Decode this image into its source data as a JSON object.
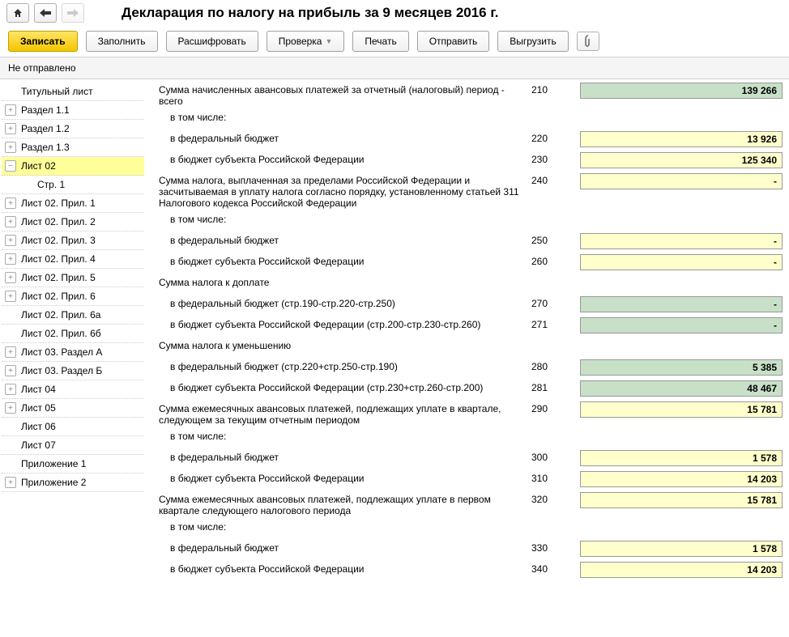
{
  "title": "Декларация по налогу на прибыль за 9 месяцев 2016 г.",
  "toolbar": {
    "save": "Записать",
    "fill": "Заполнить",
    "decrypt": "Расшифровать",
    "check": "Проверка",
    "print": "Печать",
    "send": "Отправить",
    "export": "Выгрузить"
  },
  "status": "Не отправлено",
  "nav": [
    {
      "label": "Титульный лист",
      "expand": false,
      "indent": 1
    },
    {
      "label": "Раздел 1.1",
      "expand": true,
      "indent": 0
    },
    {
      "label": "Раздел 1.2",
      "expand": true,
      "indent": 0
    },
    {
      "label": "Раздел 1.3",
      "expand": true,
      "indent": 0
    },
    {
      "label": "Лист 02",
      "expand": true,
      "expanded": true,
      "indent": 0,
      "active": true
    },
    {
      "label": "Стр. 1",
      "expand": false,
      "indent": 2
    },
    {
      "label": "Лист 02. Прил. 1",
      "expand": true,
      "indent": 0
    },
    {
      "label": "Лист 02. Прил. 2",
      "expand": true,
      "indent": 0
    },
    {
      "label": "Лист 02. Прил. 3",
      "expand": true,
      "indent": 0
    },
    {
      "label": "Лист 02. Прил. 4",
      "expand": true,
      "indent": 0
    },
    {
      "label": "Лист 02. Прил. 5",
      "expand": true,
      "indent": 0
    },
    {
      "label": "Лист 02. Прил. 6",
      "expand": true,
      "indent": 0
    },
    {
      "label": "Лист 02. Прил. 6а",
      "expand": false,
      "indent": 1
    },
    {
      "label": "Лист 02. Прил. 6б",
      "expand": false,
      "indent": 1
    },
    {
      "label": "Лист 03. Раздел А",
      "expand": true,
      "indent": 0
    },
    {
      "label": "Лист 03. Раздел Б",
      "expand": true,
      "indent": 0
    },
    {
      "label": "Лист 04",
      "expand": true,
      "indent": 0
    },
    {
      "label": "Лист 05",
      "expand": true,
      "indent": 0
    },
    {
      "label": "Лист 06",
      "expand": false,
      "indent": 1
    },
    {
      "label": "Лист 07",
      "expand": false,
      "indent": 1
    },
    {
      "label": "Приложение 1",
      "expand": false,
      "indent": 1
    },
    {
      "label": "Приложение 2",
      "expand": true,
      "indent": 0
    }
  ],
  "rows": [
    {
      "label": "Сумма начисленных авансовых платежей за отчетный (налоговый) период - всего",
      "code": "210",
      "value": "139 266",
      "color": "green",
      "indent": 0
    },
    {
      "label": "в том числе:",
      "code": "",
      "value": null,
      "indent": 1
    },
    {
      "label": "в федеральный бюджет",
      "code": "220",
      "value": "13 926",
      "color": "yellow",
      "indent": 1
    },
    {
      "label": "в бюджет субъекта Российской Федерации",
      "code": "230",
      "value": "125 340",
      "color": "yellow",
      "indent": 1
    },
    {
      "label": "Сумма налога, выплаченная за пределами Российской Федерации и засчитываемая в уплату налога согласно порядку, установленному статьей 311 Налогового кодекса Российской Федерации",
      "code": "240",
      "value": "-",
      "color": "yellow",
      "indent": 0
    },
    {
      "label": "в том числе:",
      "code": "",
      "value": null,
      "indent": 1
    },
    {
      "label": "в федеральный бюджет",
      "code": "250",
      "value": "-",
      "color": "yellow",
      "indent": 1
    },
    {
      "label": "в бюджет субъекта Российской Федерации",
      "code": "260",
      "value": "-",
      "color": "yellow",
      "indent": 1
    },
    {
      "label": "Сумма налога к доплате",
      "code": "",
      "value": null,
      "indent": 0
    },
    {
      "label": "в федеральный бюджет (стр.190-стр.220-стр.250)",
      "code": "270",
      "value": "-",
      "color": "green",
      "indent": 1
    },
    {
      "label": "в бюджет субъекта Российской Федерации (стр.200-стр.230-стр.260)",
      "code": "271",
      "value": "-",
      "color": "green",
      "indent": 1
    },
    {
      "label": "Сумма налога к уменьшению",
      "code": "",
      "value": null,
      "indent": 0
    },
    {
      "label": "в федеральный бюджет (стр.220+стр.250-стр.190)",
      "code": "280",
      "value": "5 385",
      "color": "green",
      "indent": 1
    },
    {
      "label": "в бюджет субъекта Российской Федерации (стр.230+стр.260-стр.200)",
      "code": "281",
      "value": "48 467",
      "color": "green",
      "indent": 1
    },
    {
      "label": "Сумма ежемесячных авансовых платежей, подлежащих уплате в квартале, следующем за текущим отчетным периодом",
      "code": "290",
      "value": "15 781",
      "color": "yellow",
      "indent": 0
    },
    {
      "label": "в том числе:",
      "code": "",
      "value": null,
      "indent": 1
    },
    {
      "label": "в федеральный бюджет",
      "code": "300",
      "value": "1 578",
      "color": "yellow",
      "indent": 1
    },
    {
      "label": "в бюджет субъекта Российской Федерации",
      "code": "310",
      "value": "14 203",
      "color": "yellow",
      "indent": 1
    },
    {
      "label": "Сумма ежемесячных авансовых платежей, подлежащих уплате в первом квартале следующего налогового периода",
      "code": "320",
      "value": "15 781",
      "color": "yellow",
      "indent": 0
    },
    {
      "label": "в том числе:",
      "code": "",
      "value": null,
      "indent": 1
    },
    {
      "label": "в федеральный бюджет",
      "code": "330",
      "value": "1 578",
      "color": "yellow",
      "indent": 1
    },
    {
      "label": "в бюджет субъекта Российской Федерации",
      "code": "340",
      "value": "14 203",
      "color": "yellow",
      "indent": 1
    }
  ]
}
